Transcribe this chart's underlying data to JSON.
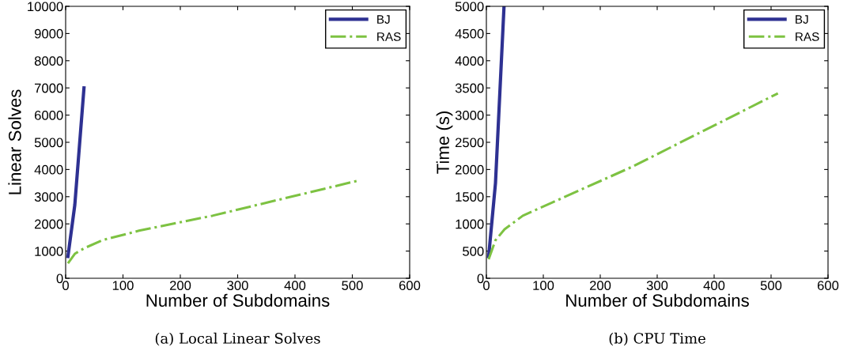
{
  "chart_data": [
    {
      "type": "line",
      "xlabel": "Number of Subdomains",
      "ylabel": "Linear Solves",
      "xlim": [
        0,
        600
      ],
      "xticks": [
        0,
        100,
        200,
        300,
        400,
        500,
        600
      ],
      "ylim": [
        0,
        10000
      ],
      "yticks": [
        0,
        1000,
        2000,
        3000,
        4000,
        5000,
        6000,
        7000,
        8000,
        9000,
        10000
      ],
      "legend": "top right",
      "grid": false,
      "annotations": [
        "(a) Local Linear Solves"
      ],
      "series": [
        {
          "name": "BJ",
          "color": "#2e3192",
          "line_style": "solid",
          "x": [
            4,
            16,
            32
          ],
          "values": [
            800,
            2700,
            7000
          ]
        },
        {
          "name": "RAS",
          "color": "#7dc242",
          "line_style": "dashdot",
          "x": [
            4,
            16,
            32,
            64,
            128,
            256,
            512
          ],
          "values": [
            550,
            900,
            1100,
            1400,
            1750,
            2300,
            3600
          ]
        }
      ]
    },
    {
      "type": "line",
      "xlabel": "Number of Subdomains",
      "ylabel": "Time (s)",
      "xlim": [
        0,
        600
      ],
      "xticks": [
        0,
        100,
        200,
        300,
        400,
        500,
        600
      ],
      "ylim": [
        0,
        5000
      ],
      "yticks": [
        0,
        500,
        1000,
        1500,
        2000,
        2500,
        3000,
        3500,
        4000,
        4500,
        5000
      ],
      "legend": "top right",
      "grid": false,
      "annotations": [
        "(b) CPU Time"
      ],
      "series": [
        {
          "name": "BJ",
          "color": "#2e3192",
          "line_style": "solid",
          "x": [
            4,
            16,
            31
          ],
          "values": [
            400,
            1750,
            5000
          ]
        },
        {
          "name": "RAS",
          "color": "#7dc242",
          "line_style": "dashdot",
          "x": [
            4,
            16,
            32,
            64,
            128,
            256,
            512
          ],
          "values": [
            350,
            700,
            900,
            1150,
            1450,
            2050,
            3400
          ]
        }
      ]
    }
  ]
}
